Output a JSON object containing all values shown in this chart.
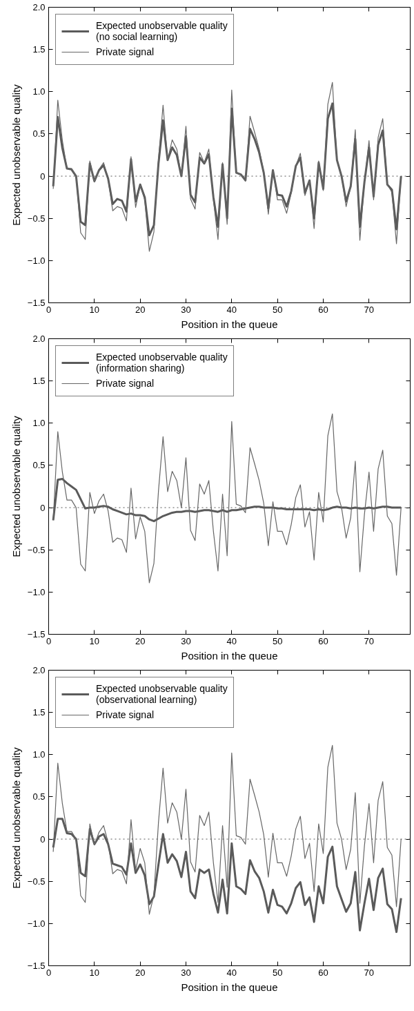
{
  "chart_data": [
    {
      "type": "line",
      "xlabel": "Position in the queue",
      "ylabel": "Expected unobservable quality",
      "x": [
        1,
        2,
        3,
        4,
        5,
        6,
        7,
        8,
        9,
        10,
        11,
        12,
        13,
        14,
        15,
        16,
        17,
        18,
        19,
        20,
        21,
        22,
        23,
        24,
        25,
        26,
        27,
        28,
        29,
        30,
        31,
        32,
        33,
        34,
        35,
        36,
        37,
        38,
        39,
        40,
        41,
        42,
        43,
        44,
        45,
        46,
        47,
        48,
        49,
        50,
        51,
        52,
        53,
        54,
        55,
        56,
        57,
        58,
        59,
        60,
        61,
        62,
        63,
        64,
        65,
        66,
        67,
        68,
        69,
        70,
        71,
        72,
        73,
        74,
        75,
        76,
        77
      ],
      "xlim": [
        0,
        79
      ],
      "xticks": [
        0,
        10,
        20,
        30,
        40,
        50,
        60,
        70
      ],
      "ylim": [
        -1.5,
        2.0
      ],
      "yticks": [
        {
          "value": -1.5,
          "label": "−1.5"
        },
        {
          "value": -1.0,
          "label": "−1.0"
        },
        {
          "value": -0.5,
          "label": "−0.5"
        },
        0,
        {
          "value": 0.5,
          "label": "0.5"
        },
        {
          "value": 1.0,
          "label": "1.0"
        },
        {
          "value": 1.5,
          "label": "1.5"
        },
        {
          "value": 2.0,
          "label": "2.0"
        }
      ],
      "legend": "top left",
      "grid": false,
      "line_style": "solid",
      "ref_lines": [
        {
          "axis": "y",
          "value": 0,
          "color": "#555555",
          "line_style": "dotted"
        }
      ],
      "series": [
        {
          "name": "Expected unobservable quality\n(no social learning)",
          "color": "#5a5a5a",
          "values": [
            -0.12,
            0.7,
            0.33,
            0.09,
            0.08,
            0.0,
            -0.54,
            -0.58,
            0.15,
            -0.06,
            0.07,
            0.13,
            -0.03,
            -0.33,
            -0.27,
            -0.29,
            -0.42,
            0.2,
            -0.3,
            -0.1,
            -0.25,
            -0.7,
            -0.58,
            0.15,
            0.66,
            0.19,
            0.34,
            0.25,
            0.0,
            0.47,
            -0.22,
            -0.31,
            0.22,
            0.15,
            0.26,
            -0.25,
            -0.6,
            0.14,
            -0.5,
            0.8,
            0.04,
            0.02,
            -0.05,
            0.56,
            0.44,
            0.28,
            0.04,
            -0.38,
            0.07,
            -0.22,
            -0.23,
            -0.36,
            -0.18,
            0.12,
            0.22,
            -0.2,
            -0.05,
            -0.5,
            0.16,
            -0.15,
            0.68,
            0.86,
            0.19,
            0.0,
            -0.3,
            -0.12,
            0.44,
            -0.6,
            -0.07,
            0.34,
            -0.24,
            0.37,
            0.54,
            -0.1,
            -0.16,
            -0.63,
            0.0
          ]
        },
        {
          "name": "Private signal",
          "color": "#666666",
          "values": [
            -0.15,
            0.9,
            0.42,
            0.09,
            0.09,
            0.0,
            -0.67,
            -0.75,
            0.18,
            -0.07,
            0.08,
            0.16,
            -0.04,
            -0.41,
            -0.36,
            -0.38,
            -0.53,
            0.23,
            -0.37,
            -0.11,
            -0.28,
            -0.89,
            -0.66,
            0.2,
            0.84,
            0.19,
            0.43,
            0.32,
            0.0,
            0.59,
            -0.27,
            -0.39,
            0.28,
            0.16,
            0.32,
            -0.28,
            -0.75,
            0.16,
            -0.57,
            1.02,
            0.04,
            0.02,
            -0.06,
            0.71,
            0.52,
            0.32,
            0.05,
            -0.45,
            0.07,
            -0.28,
            -0.28,
            -0.44,
            -0.2,
            0.12,
            0.27,
            -0.23,
            -0.05,
            -0.62,
            0.18,
            -0.17,
            0.85,
            1.11,
            0.19,
            0.0,
            -0.36,
            -0.12,
            0.55,
            -0.76,
            -0.08,
            0.42,
            -0.28,
            0.46,
            0.68,
            -0.1,
            -0.19,
            -0.8,
            0.0
          ]
        }
      ]
    },
    {
      "type": "line",
      "xlabel": "Position in the queue",
      "ylabel": "Expected unobservable quality",
      "x": [
        1,
        2,
        3,
        4,
        5,
        6,
        7,
        8,
        9,
        10,
        11,
        12,
        13,
        14,
        15,
        16,
        17,
        18,
        19,
        20,
        21,
        22,
        23,
        24,
        25,
        26,
        27,
        28,
        29,
        30,
        31,
        32,
        33,
        34,
        35,
        36,
        37,
        38,
        39,
        40,
        41,
        42,
        43,
        44,
        45,
        46,
        47,
        48,
        49,
        50,
        51,
        52,
        53,
        54,
        55,
        56,
        57,
        58,
        59,
        60,
        61,
        62,
        63,
        64,
        65,
        66,
        67,
        68,
        69,
        70,
        71,
        72,
        73,
        74,
        75,
        76,
        77
      ],
      "xlim": [
        0,
        79
      ],
      "xticks": [
        0,
        10,
        20,
        30,
        40,
        50,
        60,
        70
      ],
      "ylim": [
        -1.5,
        2.0
      ],
      "yticks": [
        {
          "value": -1.5,
          "label": "−1.5"
        },
        {
          "value": -1.0,
          "label": "−1.0"
        },
        {
          "value": -0.5,
          "label": "−0.5"
        },
        0,
        {
          "value": 0.5,
          "label": "0.5"
        },
        {
          "value": 1.0,
          "label": "1.0"
        },
        {
          "value": 1.5,
          "label": "1.5"
        },
        {
          "value": 2.0,
          "label": "2.0"
        }
      ],
      "legend": "top left",
      "grid": false,
      "line_style": "solid",
      "ref_lines": [
        {
          "axis": "y",
          "value": 0,
          "color": "#555555",
          "line_style": "dotted"
        }
      ],
      "series": [
        {
          "name": "Expected unobservable quality\n(information sharing)",
          "color": "#5a5a5a",
          "values": [
            -0.15,
            0.33,
            0.34,
            0.29,
            0.25,
            0.21,
            0.1,
            -0.01,
            0.0,
            0.0,
            0.01,
            0.02,
            0.01,
            -0.02,
            -0.04,
            -0.06,
            -0.08,
            -0.07,
            -0.09,
            -0.09,
            -0.1,
            -0.14,
            -0.16,
            -0.13,
            -0.1,
            -0.08,
            -0.06,
            -0.05,
            -0.05,
            -0.04,
            -0.04,
            -0.05,
            -0.04,
            -0.03,
            -0.03,
            -0.04,
            -0.05,
            -0.03,
            -0.05,
            -0.03,
            -0.03,
            -0.02,
            -0.01,
            0.0,
            0.01,
            0.01,
            0.0,
            0.0,
            0.0,
            -0.01,
            -0.01,
            -0.02,
            -0.02,
            -0.02,
            -0.02,
            -0.02,
            -0.02,
            -0.03,
            -0.02,
            -0.03,
            -0.02,
            0.0,
            0.01,
            0.0,
            0.0,
            -0.01,
            0.0,
            -0.01,
            -0.01,
            0.0,
            -0.01,
            0.0,
            0.01,
            0.01,
            0.0,
            0.0,
            0.0
          ]
        },
        {
          "name": "Private signal",
          "color": "#666666",
          "values": [
            -0.15,
            0.9,
            0.42,
            0.09,
            0.09,
            0.0,
            -0.67,
            -0.75,
            0.18,
            -0.07,
            0.08,
            0.16,
            -0.04,
            -0.41,
            -0.36,
            -0.38,
            -0.53,
            0.23,
            -0.37,
            -0.11,
            -0.28,
            -0.89,
            -0.66,
            0.2,
            0.84,
            0.19,
            0.43,
            0.32,
            0.0,
            0.59,
            -0.27,
            -0.39,
            0.28,
            0.16,
            0.32,
            -0.28,
            -0.75,
            0.16,
            -0.57,
            1.02,
            0.04,
            0.02,
            -0.06,
            0.71,
            0.52,
            0.32,
            0.05,
            -0.45,
            0.07,
            -0.28,
            -0.28,
            -0.44,
            -0.2,
            0.12,
            0.27,
            -0.23,
            -0.05,
            -0.62,
            0.18,
            -0.17,
            0.85,
            1.11,
            0.19,
            0.0,
            -0.36,
            -0.12,
            0.55,
            -0.76,
            -0.08,
            0.42,
            -0.28,
            0.46,
            0.68,
            -0.1,
            -0.19,
            -0.8,
            0.0
          ]
        }
      ]
    },
    {
      "type": "line",
      "xlabel": "Position in the queue",
      "ylabel": "Expected unobservable quality",
      "x": [
        1,
        2,
        3,
        4,
        5,
        6,
        7,
        8,
        9,
        10,
        11,
        12,
        13,
        14,
        15,
        16,
        17,
        18,
        19,
        20,
        21,
        22,
        23,
        24,
        25,
        26,
        27,
        28,
        29,
        30,
        31,
        32,
        33,
        34,
        35,
        36,
        37,
        38,
        39,
        40,
        41,
        42,
        43,
        44,
        45,
        46,
        47,
        48,
        49,
        50,
        51,
        52,
        53,
        54,
        55,
        56,
        57,
        58,
        59,
        60,
        61,
        62,
        63,
        64,
        65,
        66,
        67,
        68,
        69,
        70,
        71,
        72,
        73,
        74,
        75,
        76,
        77
      ],
      "xlim": [
        0,
        79
      ],
      "xticks": [
        0,
        10,
        20,
        30,
        40,
        50,
        60,
        70
      ],
      "ylim": [
        -1.5,
        2.0
      ],
      "yticks": [
        {
          "value": -1.5,
          "label": "−1.5"
        },
        {
          "value": -1.0,
          "label": "−1.0"
        },
        {
          "value": -0.5,
          "label": "−0.5"
        },
        0,
        {
          "value": 0.5,
          "label": "0.5"
        },
        {
          "value": 1.0,
          "label": "1.0"
        },
        {
          "value": 1.5,
          "label": "1.5"
        },
        {
          "value": 2.0,
          "label": "2.0"
        }
      ],
      "legend": "top left",
      "grid": false,
      "line_style": "solid",
      "ref_lines": [
        {
          "axis": "y",
          "value": 0,
          "color": "#555555",
          "line_style": "dotted"
        }
      ],
      "series": [
        {
          "name": "Expected unobservable quality\n(observational learning)",
          "color": "#5a5a5a",
          "values": [
            -0.1,
            0.24,
            0.24,
            0.07,
            0.06,
            0.0,
            -0.4,
            -0.44,
            0.12,
            -0.06,
            0.03,
            0.06,
            -0.06,
            -0.29,
            -0.31,
            -0.33,
            -0.42,
            -0.05,
            -0.4,
            -0.3,
            -0.43,
            -0.77,
            -0.68,
            -0.3,
            0.06,
            -0.28,
            -0.18,
            -0.26,
            -0.45,
            -0.15,
            -0.62,
            -0.7,
            -0.36,
            -0.4,
            -0.36,
            -0.65,
            -0.87,
            -0.48,
            -0.88,
            -0.05,
            -0.56,
            -0.59,
            -0.65,
            -0.25,
            -0.38,
            -0.46,
            -0.62,
            -0.87,
            -0.6,
            -0.78,
            -0.8,
            -0.88,
            -0.76,
            -0.58,
            -0.51,
            -0.78,
            -0.69,
            -0.98,
            -0.56,
            -0.76,
            -0.21,
            -0.09,
            -0.56,
            -0.71,
            -0.86,
            -0.76,
            -0.39,
            -1.08,
            -0.76,
            -0.47,
            -0.84,
            -0.46,
            -0.35,
            -0.77,
            -0.83,
            -1.1,
            -0.7
          ]
        },
        {
          "name": "Private signal",
          "color": "#666666",
          "values": [
            -0.15,
            0.9,
            0.42,
            0.09,
            0.09,
            0.0,
            -0.67,
            -0.75,
            0.18,
            -0.07,
            0.08,
            0.16,
            -0.04,
            -0.41,
            -0.36,
            -0.38,
            -0.53,
            0.23,
            -0.37,
            -0.11,
            -0.28,
            -0.89,
            -0.66,
            0.2,
            0.84,
            0.19,
            0.43,
            0.32,
            0.0,
            0.59,
            -0.27,
            -0.39,
            0.28,
            0.16,
            0.32,
            -0.28,
            -0.75,
            0.16,
            -0.57,
            1.02,
            0.04,
            0.02,
            -0.06,
            0.71,
            0.52,
            0.32,
            0.05,
            -0.45,
            0.07,
            -0.28,
            -0.28,
            -0.44,
            -0.2,
            0.12,
            0.27,
            -0.23,
            -0.05,
            -0.62,
            0.18,
            -0.17,
            0.85,
            1.11,
            0.19,
            0.0,
            -0.36,
            -0.12,
            0.55,
            -0.76,
            -0.08,
            0.42,
            -0.28,
            0.46,
            0.68,
            -0.1,
            -0.19,
            -0.8,
            0.0
          ]
        }
      ]
    }
  ]
}
